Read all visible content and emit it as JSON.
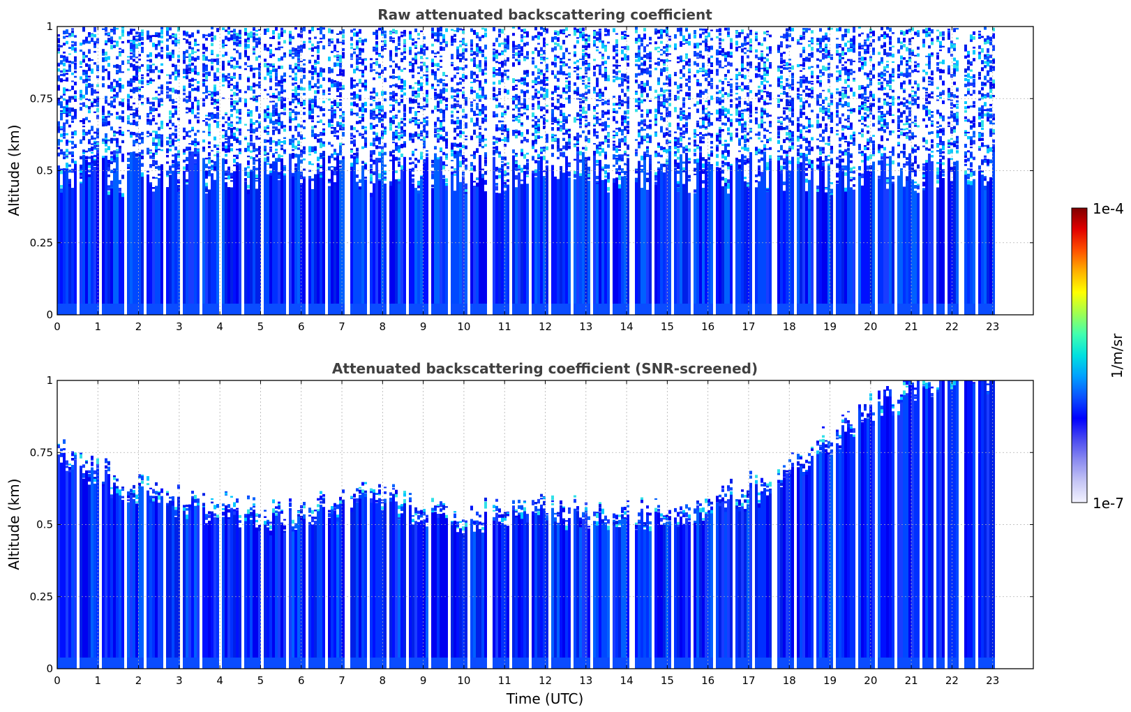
{
  "chart_data": [
    {
      "type": "heatmap",
      "title": "Raw attenuated backscattering coefficient",
      "xlabel": "",
      "ylabel": "Altitude (km)",
      "xlim": [
        0,
        24
      ],
      "ylim": [
        0,
        1
      ],
      "x_ticks": [
        "0",
        "1",
        "2",
        "3",
        "4",
        "5",
        "6",
        "7",
        "8",
        "9",
        "10",
        "11",
        "12",
        "13",
        "14",
        "15",
        "16",
        "17",
        "18",
        "19",
        "20",
        "21",
        "22",
        "23"
      ],
      "y_ticks": [
        "0",
        "0.25",
        "0.5",
        "0.75",
        "1"
      ],
      "data_extent_hours": [
        0,
        23
      ],
      "grid": true,
      "profile_gaps_hours": [
        0.5,
        1.0,
        1.65,
        2.1,
        2.6,
        3.0,
        3.5,
        4.0,
        4.5,
        5.0,
        5.6,
        6.1,
        6.6,
        7.1,
        7.6,
        8.1,
        8.6,
        9.1,
        9.6,
        10.1,
        10.6,
        11.1,
        11.6,
        12.1,
        12.6,
        13.1,
        13.6,
        14.1,
        14.6,
        15.1,
        15.6,
        16.15,
        16.6,
        17.1,
        17.6,
        18.1,
        18.6,
        19.1,
        19.6,
        20.1,
        20.6,
        21.2,
        21.55,
        21.8,
        22.2,
        22.55
      ],
      "description_noise": "strong near surface, noisy above 0.5 km"
    },
    {
      "type": "heatmap",
      "title": "Attenuated backscattering coefficient (SNR-screened)",
      "xlabel": "Time (UTC)",
      "ylabel": "Altitude (km)",
      "xlim": [
        0,
        24
      ],
      "ylim": [
        0,
        1
      ],
      "x_ticks": [
        "0",
        "1",
        "2",
        "3",
        "4",
        "5",
        "6",
        "7",
        "8",
        "9",
        "10",
        "11",
        "12",
        "13",
        "14",
        "15",
        "16",
        "17",
        "18",
        "19",
        "20",
        "21",
        "22",
        "23"
      ],
      "y_ticks": [
        "0",
        "0.25",
        "0.5",
        "0.75",
        "1"
      ],
      "data_extent_hours": [
        0,
        23
      ],
      "grid": true,
      "layer_top_km": [
        [
          0.0,
          0.72
        ],
        [
          1.0,
          0.66
        ],
        [
          2.0,
          0.6
        ],
        [
          3.0,
          0.56
        ],
        [
          4.0,
          0.53
        ],
        [
          5.0,
          0.51
        ],
        [
          6.0,
          0.52
        ],
        [
          7.0,
          0.56
        ],
        [
          8.0,
          0.58
        ],
        [
          9.0,
          0.52
        ],
        [
          10.0,
          0.5
        ],
        [
          11.0,
          0.52
        ],
        [
          12.0,
          0.54
        ],
        [
          13.0,
          0.52
        ],
        [
          14.0,
          0.5
        ],
        [
          15.0,
          0.53
        ],
        [
          16.0,
          0.55
        ],
        [
          17.0,
          0.6
        ],
        [
          18.0,
          0.66
        ],
        [
          19.0,
          0.78
        ],
        [
          20.0,
          0.88
        ],
        [
          21.0,
          0.96
        ],
        [
          22.0,
          1.0
        ],
        [
          23.0,
          1.0
        ]
      ]
    }
  ],
  "colorbar": {
    "label": "1/m/sr",
    "min_label": "1e-7",
    "max_label": "1e-4",
    "colors": [
      "#f2f2ff",
      "#c6c6f5",
      "#8c8cf0",
      "#4a4af0",
      "#0000ff",
      "#0a50ff",
      "#00a0ff",
      "#00e0e0",
      "#40ffb0",
      "#a0ff50",
      "#ffff00",
      "#ffb000",
      "#ff5000",
      "#e00000",
      "#800000"
    ]
  }
}
